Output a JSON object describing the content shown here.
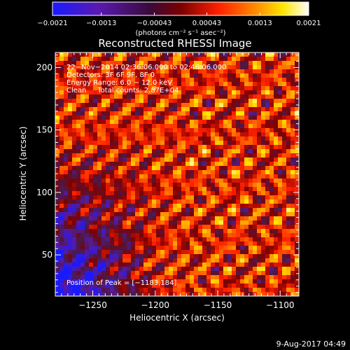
{
  "chart_data": {
    "type": "heatmap",
    "title": "Reconstructed RHESSI Image",
    "xlabel": "Heliocentric X (arcsec)",
    "ylabel": "Heliocentric Y (arcsec)",
    "xlim": [
      -1280,
      -1085
    ],
    "ylim": [
      17,
      212
    ],
    "x_ticks": [
      -1250,
      -1200,
      -1150,
      -1100
    ],
    "y_ticks": [
      50,
      100,
      150,
      200
    ],
    "x_tick_labels": [
      "−1250",
      "−1200",
      "−1150",
      "−1100"
    ],
    "y_tick_labels": [
      "50",
      "100",
      "150",
      "200"
    ],
    "colorbar": {
      "range": [
        -0.0021,
        0.0021
      ],
      "tick_values": [
        -0.0021,
        -0.0013,
        -0.00043,
        0.00043,
        0.0013,
        0.0021
      ],
      "tick_labels": [
        "−0.0021",
        "−0.0013",
        "−0.00043",
        "0.00043",
        "0.0013",
        "0.0021"
      ],
      "units_label": "(photons cm⁻² s⁻¹ asec⁻²)"
    },
    "annotations": [
      "22−Nov−2014 02:36:06.000 to 02:46:06.000",
      "Detectors: 3F 6F 9F, 8F 0",
      "Energy Range: 6.0 − 12.0 keV",
      "Clean     Total counts: 2.87E+04"
    ],
    "peak_label": "Position of Peak = [−1183,184]",
    "peak": [
      -1183,
      184
    ],
    "grid": false,
    "colors": {
      "colormap": [
        "#1a1aff",
        "#5a1aa0",
        "#4a1a4a",
        "#800000",
        "#ff2000",
        "#ff9000",
        "#ffe600",
        "#ffffff"
      ]
    }
  },
  "footer": {
    "date": "9-Aug-2017 04:49"
  }
}
